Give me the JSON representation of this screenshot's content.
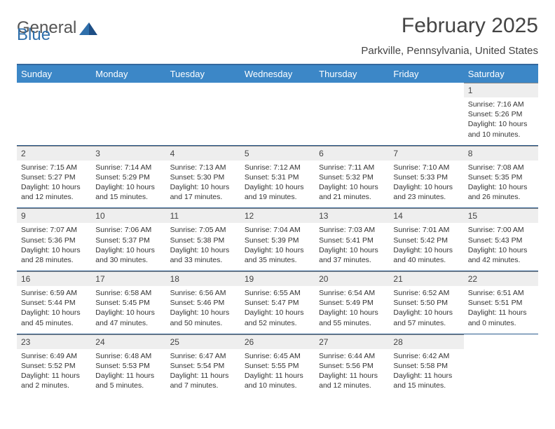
{
  "logo": {
    "text1": "General",
    "text2": "Blue"
  },
  "title": "February 2025",
  "location": "Parkville, Pennsylvania, United States",
  "colors": {
    "header_bg": "#3c87c7",
    "header_text": "#ffffff",
    "accent_line": "#2a5a8c",
    "daynum_bg": "#eeeeee",
    "body_text": "#333333"
  },
  "dayHeaders": [
    "Sunday",
    "Monday",
    "Tuesday",
    "Wednesday",
    "Thursday",
    "Friday",
    "Saturday"
  ],
  "weeks": [
    [
      {
        "n": "",
        "lines": []
      },
      {
        "n": "",
        "lines": []
      },
      {
        "n": "",
        "lines": []
      },
      {
        "n": "",
        "lines": []
      },
      {
        "n": "",
        "lines": []
      },
      {
        "n": "",
        "lines": []
      },
      {
        "n": "1",
        "lines": [
          "Sunrise: 7:16 AM",
          "Sunset: 5:26 PM",
          "Daylight: 10 hours and 10 minutes."
        ]
      }
    ],
    [
      {
        "n": "2",
        "lines": [
          "Sunrise: 7:15 AM",
          "Sunset: 5:27 PM",
          "Daylight: 10 hours and 12 minutes."
        ]
      },
      {
        "n": "3",
        "lines": [
          "Sunrise: 7:14 AM",
          "Sunset: 5:29 PM",
          "Daylight: 10 hours and 15 minutes."
        ]
      },
      {
        "n": "4",
        "lines": [
          "Sunrise: 7:13 AM",
          "Sunset: 5:30 PM",
          "Daylight: 10 hours and 17 minutes."
        ]
      },
      {
        "n": "5",
        "lines": [
          "Sunrise: 7:12 AM",
          "Sunset: 5:31 PM",
          "Daylight: 10 hours and 19 minutes."
        ]
      },
      {
        "n": "6",
        "lines": [
          "Sunrise: 7:11 AM",
          "Sunset: 5:32 PM",
          "Daylight: 10 hours and 21 minutes."
        ]
      },
      {
        "n": "7",
        "lines": [
          "Sunrise: 7:10 AM",
          "Sunset: 5:33 PM",
          "Daylight: 10 hours and 23 minutes."
        ]
      },
      {
        "n": "8",
        "lines": [
          "Sunrise: 7:08 AM",
          "Sunset: 5:35 PM",
          "Daylight: 10 hours and 26 minutes."
        ]
      }
    ],
    [
      {
        "n": "9",
        "lines": [
          "Sunrise: 7:07 AM",
          "Sunset: 5:36 PM",
          "Daylight: 10 hours and 28 minutes."
        ]
      },
      {
        "n": "10",
        "lines": [
          "Sunrise: 7:06 AM",
          "Sunset: 5:37 PM",
          "Daylight: 10 hours and 30 minutes."
        ]
      },
      {
        "n": "11",
        "lines": [
          "Sunrise: 7:05 AM",
          "Sunset: 5:38 PM",
          "Daylight: 10 hours and 33 minutes."
        ]
      },
      {
        "n": "12",
        "lines": [
          "Sunrise: 7:04 AM",
          "Sunset: 5:39 PM",
          "Daylight: 10 hours and 35 minutes."
        ]
      },
      {
        "n": "13",
        "lines": [
          "Sunrise: 7:03 AM",
          "Sunset: 5:41 PM",
          "Daylight: 10 hours and 37 minutes."
        ]
      },
      {
        "n": "14",
        "lines": [
          "Sunrise: 7:01 AM",
          "Sunset: 5:42 PM",
          "Daylight: 10 hours and 40 minutes."
        ]
      },
      {
        "n": "15",
        "lines": [
          "Sunrise: 7:00 AM",
          "Sunset: 5:43 PM",
          "Daylight: 10 hours and 42 minutes."
        ]
      }
    ],
    [
      {
        "n": "16",
        "lines": [
          "Sunrise: 6:59 AM",
          "Sunset: 5:44 PM",
          "Daylight: 10 hours and 45 minutes."
        ]
      },
      {
        "n": "17",
        "lines": [
          "Sunrise: 6:58 AM",
          "Sunset: 5:45 PM",
          "Daylight: 10 hours and 47 minutes."
        ]
      },
      {
        "n": "18",
        "lines": [
          "Sunrise: 6:56 AM",
          "Sunset: 5:46 PM",
          "Daylight: 10 hours and 50 minutes."
        ]
      },
      {
        "n": "19",
        "lines": [
          "Sunrise: 6:55 AM",
          "Sunset: 5:47 PM",
          "Daylight: 10 hours and 52 minutes."
        ]
      },
      {
        "n": "20",
        "lines": [
          "Sunrise: 6:54 AM",
          "Sunset: 5:49 PM",
          "Daylight: 10 hours and 55 minutes."
        ]
      },
      {
        "n": "21",
        "lines": [
          "Sunrise: 6:52 AM",
          "Sunset: 5:50 PM",
          "Daylight: 10 hours and 57 minutes."
        ]
      },
      {
        "n": "22",
        "lines": [
          "Sunrise: 6:51 AM",
          "Sunset: 5:51 PM",
          "Daylight: 11 hours and 0 minutes."
        ]
      }
    ],
    [
      {
        "n": "23",
        "lines": [
          "Sunrise: 6:49 AM",
          "Sunset: 5:52 PM",
          "Daylight: 11 hours and 2 minutes."
        ]
      },
      {
        "n": "24",
        "lines": [
          "Sunrise: 6:48 AM",
          "Sunset: 5:53 PM",
          "Daylight: 11 hours and 5 minutes."
        ]
      },
      {
        "n": "25",
        "lines": [
          "Sunrise: 6:47 AM",
          "Sunset: 5:54 PM",
          "Daylight: 11 hours and 7 minutes."
        ]
      },
      {
        "n": "26",
        "lines": [
          "Sunrise: 6:45 AM",
          "Sunset: 5:55 PM",
          "Daylight: 11 hours and 10 minutes."
        ]
      },
      {
        "n": "27",
        "lines": [
          "Sunrise: 6:44 AM",
          "Sunset: 5:56 PM",
          "Daylight: 11 hours and 12 minutes."
        ]
      },
      {
        "n": "28",
        "lines": [
          "Sunrise: 6:42 AM",
          "Sunset: 5:58 PM",
          "Daylight: 11 hours and 15 minutes."
        ]
      },
      {
        "n": "",
        "lines": []
      }
    ]
  ]
}
